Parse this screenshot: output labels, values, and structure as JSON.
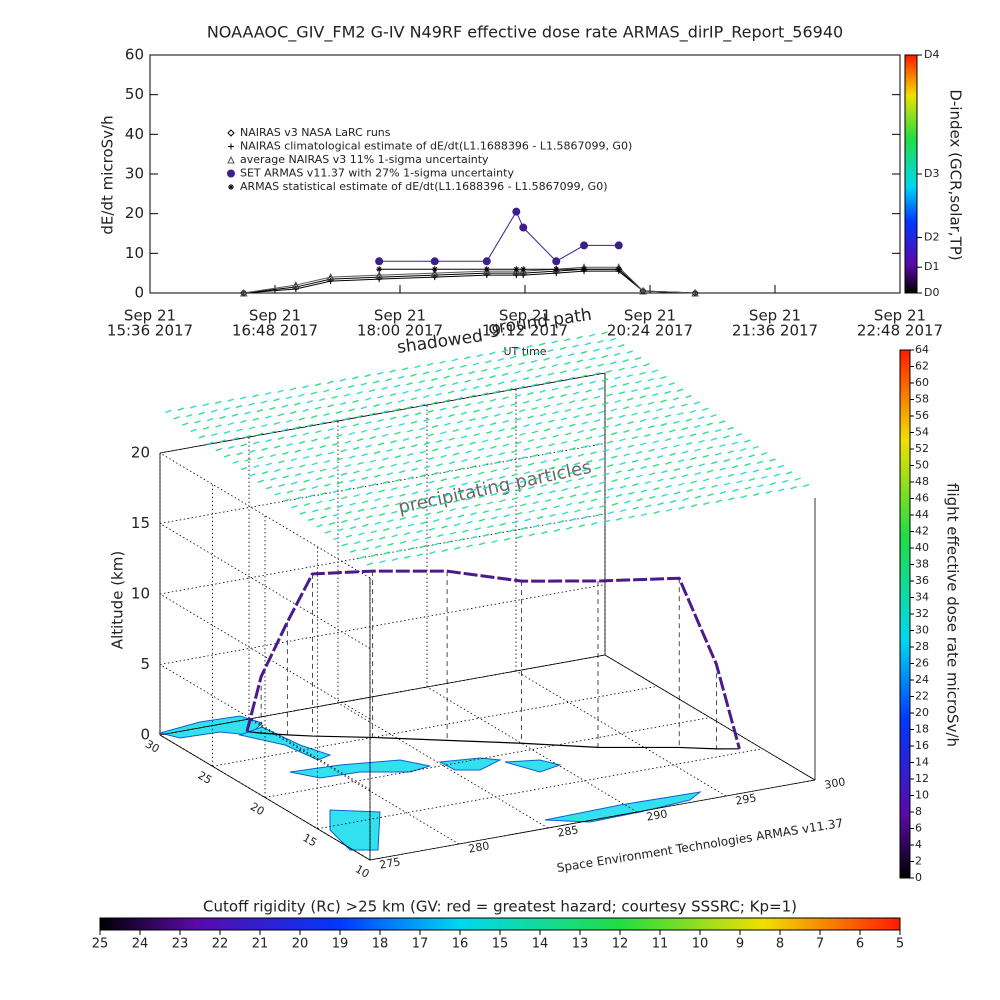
{
  "chart_data": [
    {
      "type": "line",
      "title": "NOAAAOC_GIV_FM2 G-IV    N49RF   effective dose rate ARMAS_dirIP_Report_56940",
      "y_label": "dE/dt microSv/h",
      "x_label": "UT time",
      "annotations": [
        "ground path",
        "shadowed"
      ],
      "x": [
        "2017-09-21 16:30",
        "2017-09-21 17:00",
        "2017-09-21 17:20",
        "2017-09-21 17:48",
        "2017-09-21 18:20",
        "2017-09-21 18:50",
        "2017-09-21 19:07",
        "2017-09-21 19:11",
        "2017-09-21 19:30",
        "2017-09-21 19:46",
        "2017-09-21 20:06",
        "2017-09-21 20:20",
        "2017-09-21 20:50"
      ],
      "series": [
        {
          "name": "NAIRAS v3 NASA LaRC runs",
          "color": "#000000",
          "marker": "diamond",
          "values": [
            0,
            1.5,
            3.5,
            4,
            4.5,
            5,
            5,
            5,
            5.5,
            6,
            6,
            0.5,
            0
          ]
        },
        {
          "name": "NAIRAS climatological estimate of dE/dt(L1.1688396 - L1.5867099, G0)",
          "color": "#000000",
          "marker": "plus",
          "values": [
            0,
            1,
            3,
            3.5,
            4,
            4.5,
            4.5,
            4.5,
            5,
            5.5,
            5.5,
            0.5,
            0
          ]
        },
        {
          "name": "average NAIRAS v3 11% 1-sigma uncertainty",
          "color": "#555555",
          "marker": "triangle",
          "values": [
            0,
            2,
            4,
            4.5,
            5,
            5.5,
            5.5,
            5.5,
            6,
            6.5,
            6.5,
            0.5,
            0
          ]
        },
        {
          "name": "SET ARMAS v11.37 with 27% 1-sigma uncertainty",
          "color": "#3c1f8c",
          "marker": "circle",
          "values": [
            null,
            null,
            null,
            8,
            8,
            8,
            20.5,
            16.5,
            8,
            12,
            12,
            null,
            null
          ]
        },
        {
          "name": "ARMAS statistical estimate of dE/dt(L1.1688396 - L1.5867099, G0)",
          "color": "#000000",
          "marker": "asterisk",
          "values": [
            null,
            null,
            null,
            6,
            6,
            6,
            6,
            6,
            6,
            6,
            6,
            null,
            null
          ]
        }
      ],
      "xlim": [
        "2017-09-21 15:36",
        "2017-09-21 22:48"
      ],
      "xticks": [
        {
          "value": "2017-09-21 15:36",
          "label": [
            "Sep 21",
            "15:36 2017"
          ]
        },
        {
          "value": "2017-09-21 16:48",
          "label": [
            "Sep 21",
            "16:48 2017"
          ]
        },
        {
          "value": "2017-09-21 18:00",
          "label": [
            "Sep 21",
            "18:00 2017"
          ]
        },
        {
          "value": "2017-09-21 19:12",
          "label": [
            "Sep 21",
            "19:12 2017"
          ]
        },
        {
          "value": "2017-09-21 20:24",
          "label": [
            "Sep 21",
            "20:24 2017"
          ]
        },
        {
          "value": "2017-09-21 21:36",
          "label": [
            "Sep 21",
            "21:36 2017"
          ]
        },
        {
          "value": "2017-09-21 22:48",
          "label": [
            "Sep 21",
            "22:48 2017"
          ]
        }
      ],
      "ylim": [
        0,
        60
      ],
      "yticks": [
        0,
        10,
        20,
        30,
        40,
        50,
        60
      ],
      "colorbar": {
        "label": "D-index (GCR,solar,TP)",
        "ticks": [
          {
            "value": 0,
            "label": "D0"
          },
          {
            "value": 6.5,
            "label": "D1"
          },
          {
            "value": 14,
            "label": "D2"
          },
          {
            "value": 30,
            "label": "D3"
          },
          {
            "value": 60,
            "label": "D4"
          }
        ]
      }
    },
    {
      "type": "scatter3d",
      "annotation": "precipitating particles",
      "z_label": "Altitude (km)",
      "footer": "Space Environment Technologies ARMAS v11.37",
      "xlim": [
        275,
        300
      ],
      "xticks": [
        275,
        280,
        285,
        290,
        295,
        300
      ],
      "ylim": [
        10,
        30
      ],
      "yticks": [
        10,
        15,
        20,
        25,
        30
      ],
      "zlim": [
        0,
        20
      ],
      "zticks": [
        0,
        5,
        10,
        15,
        20
      ],
      "flight_path": {
        "lon": [
          279,
          279.5,
          280.5,
          281.5,
          284,
          287,
          290,
          293,
          296.5,
          298,
          299
        ],
        "lat": [
          28.5,
          28,
          27.2,
          26.5,
          25,
          23,
          21,
          18.8,
          17,
          16,
          15.5
        ],
        "alt": [
          0,
          4,
          8,
          11.5,
          11.8,
          12,
          11.5,
          11.8,
          12,
          6,
          0
        ]
      },
      "dose_colorbar": {
        "label": "flight effective dose rate microSv/h",
        "lim": [
          0,
          64
        ],
        "ticks": [
          0,
          2,
          4,
          6,
          8,
          10,
          12,
          14,
          16,
          18,
          20,
          22,
          24,
          26,
          28,
          30,
          32,
          34,
          36,
          38,
          40,
          42,
          44,
          46,
          48,
          50,
          52,
          54,
          56,
          58,
          60,
          62,
          64
        ]
      },
      "rigidity_colorbar": {
        "label": "Cutoff rigidity (Rc) >25 km (GV: red = greatest hazard; courtesy SSSRC; Kp=1)",
        "lim": [
          25,
          5
        ],
        "ticks": [
          25,
          24,
          23,
          22,
          21,
          20,
          19,
          18,
          17,
          16,
          15,
          14,
          13,
          12,
          11,
          10,
          9,
          8,
          7,
          6,
          5
        ]
      }
    }
  ]
}
